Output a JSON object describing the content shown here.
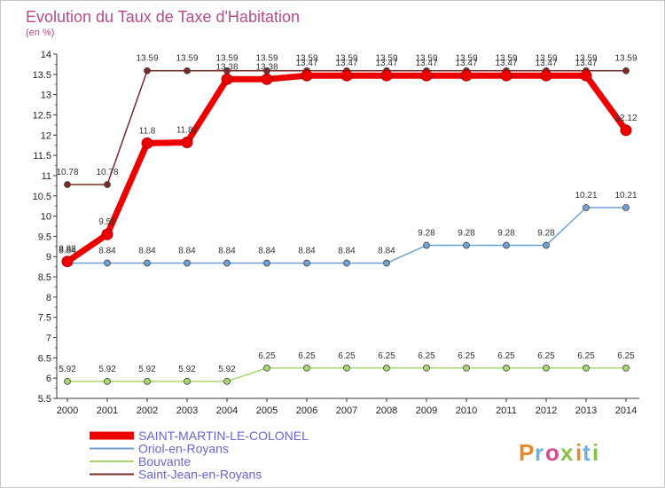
{
  "chart_data": {
    "type": "line",
    "title": "Evolution du Taux de Taxe d'Habitation",
    "ylabel": "(en %)",
    "xlabel": "",
    "categories": [
      "2000",
      "2001",
      "2002",
      "2003",
      "2004",
      "2005",
      "2006",
      "2007",
      "2008",
      "2009",
      "2010",
      "2011",
      "2012",
      "2013",
      "2014"
    ],
    "ylim": [
      5.5,
      14
    ],
    "ytick_step": 0.5,
    "grid": false,
    "legend_position": "bottom-left",
    "series": [
      {
        "name": "Saint-Jean-en-Royans",
        "color": "#7a2a2a",
        "values": [
          10.78,
          10.78,
          13.59,
          13.59,
          13.59,
          13.59,
          13.59,
          13.59,
          13.59,
          13.59,
          13.59,
          13.59,
          13.59,
          13.59,
          13.59
        ],
        "labels": [
          "10.78",
          "10.78",
          "13.59",
          "13.59",
          "13.59",
          "13.59",
          "13.59",
          "13.59",
          "13.59",
          "13.59",
          "13.59",
          "13.59",
          "13.59",
          "13.59",
          "13.59"
        ]
      },
      {
        "name": "Oriol-en-Royans",
        "color": "#6fa1d6",
        "values": [
          8.84,
          8.84,
          8.84,
          8.84,
          8.84,
          8.84,
          8.84,
          8.84,
          8.84,
          9.28,
          9.28,
          9.28,
          9.28,
          10.21,
          10.21
        ],
        "labels": [
          "8.84",
          "8.84",
          "8.84",
          "8.84",
          "8.84",
          "8.84",
          "8.84",
          "8.84",
          "8.84",
          "9.28",
          "9.28",
          "9.28",
          "9.28",
          "10.21",
          "10.21"
        ]
      },
      {
        "name": "Bouvante",
        "color": "#a6d86e",
        "values": [
          5.92,
          5.92,
          5.92,
          5.92,
          5.92,
          6.25,
          6.25,
          6.25,
          6.25,
          6.25,
          6.25,
          6.25,
          6.25,
          6.25,
          6.25
        ],
        "labels": [
          "5.92",
          "5.92",
          "5.92",
          "5.92",
          "5.92",
          "6.25",
          "6.25",
          "6.25",
          "6.25",
          "6.25",
          "6.25",
          "6.25",
          "6.25",
          "6.25",
          "6.25"
        ]
      },
      {
        "name": "SAINT-MARTIN-LE-COLONEL",
        "color": "#ee0000",
        "values": [
          8.88,
          9.55,
          11.8,
          11.82,
          13.38,
          13.38,
          13.47,
          13.47,
          13.47,
          13.47,
          13.47,
          13.47,
          13.47,
          13.47,
          12.12
        ],
        "labels": [
          "8.88",
          "9.55",
          "11.8",
          "11.82",
          "13.38",
          "13.38",
          "13.47",
          "13.47",
          "13.47",
          "13.47",
          "13.47",
          "13.47",
          "13.47",
          "13.47",
          "12.12"
        ]
      }
    ],
    "legend": [
      "SAINT-MARTIN-LE-COLONEL",
      "Oriol-en-Royans",
      "Bouvante",
      "Saint-Jean-en-Royans"
    ]
  },
  "logo": {
    "text": "Proxiti",
    "letters": [
      {
        "ch": "P",
        "color": "#e8872a"
      },
      {
        "ch": "r",
        "color": "#6ab0e0"
      },
      {
        "ch": "o",
        "color": "#d94a8c"
      },
      {
        "ch": "x",
        "color": "#8ac048"
      },
      {
        "ch": "i",
        "color": "#e8872a"
      },
      {
        "ch": "t",
        "color": "#6ab0e0"
      },
      {
        "ch": "i",
        "color": "#8ac048"
      }
    ]
  }
}
